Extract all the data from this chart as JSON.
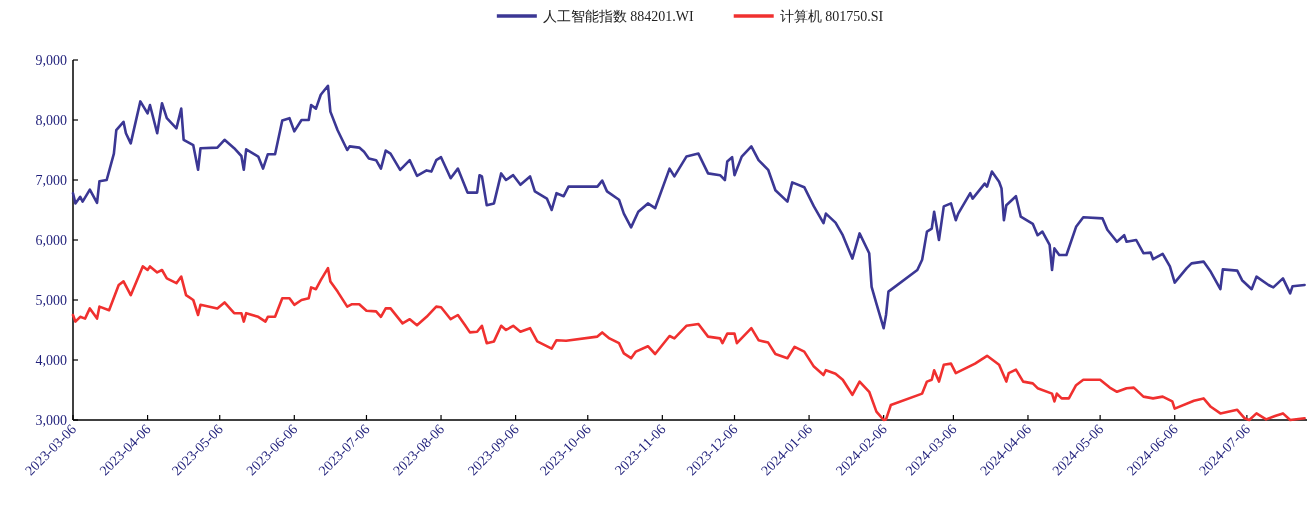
{
  "chart_data": {
    "type": "line",
    "legend": "top",
    "xlim": [
      "2023-03-06",
      "2024-07-31"
    ],
    "ylim": [
      3000,
      9000
    ],
    "yticks": [
      {
        "value": 3000,
        "label": "3,000"
      },
      {
        "value": 4000,
        "label": "4,000"
      },
      {
        "value": 5000,
        "label": "5,000"
      },
      {
        "value": 6000,
        "label": "6,000"
      },
      {
        "value": 7000,
        "label": "7,000"
      },
      {
        "value": 8000,
        "label": "8,000"
      },
      {
        "value": 9000,
        "label": "9,000"
      }
    ],
    "xticks": [
      {
        "value": "2023-03-06",
        "label": "2023-03-06"
      },
      {
        "value": "2023-04-06",
        "label": "2023-04-06"
      },
      {
        "value": "2023-05-06",
        "label": "2023-05-06"
      },
      {
        "value": "2023-06-06",
        "label": "2023-06-06"
      },
      {
        "value": "2023-07-06",
        "label": "2023-07-06"
      },
      {
        "value": "2023-08-06",
        "label": "2023-08-06"
      },
      {
        "value": "2023-09-06",
        "label": "2023-09-06"
      },
      {
        "value": "2023-10-06",
        "label": "2023-10-06"
      },
      {
        "value": "2023-11-06",
        "label": "2023-11-06"
      },
      {
        "value": "2023-12-06",
        "label": "2023-12-06"
      },
      {
        "value": "2024-01-06",
        "label": "2024-01-06"
      },
      {
        "value": "2024-02-06",
        "label": "2024-02-06"
      },
      {
        "value": "2024-03-06",
        "label": "2024-03-06"
      },
      {
        "value": "2024-04-06",
        "label": "2024-04-06"
      },
      {
        "value": "2024-05-06",
        "label": "2024-05-06"
      },
      {
        "value": "2024-06-06",
        "label": "2024-06-06"
      },
      {
        "value": "2024-07-06",
        "label": "2024-07-06"
      }
    ],
    "series": [
      {
        "name": "人工智能指数 884201.WI",
        "color": "#3b3794",
        "x": [
          "2023-03-06",
          "2023-03-07",
          "2023-03-09",
          "2023-03-10",
          "2023-03-13",
          "2023-03-16",
          "2023-03-17",
          "2023-03-20",
          "2023-03-23",
          "2023-03-24",
          "2023-03-27",
          "2023-03-28",
          "2023-03-30",
          "2023-04-03",
          "2023-04-06",
          "2023-04-07",
          "2023-04-10",
          "2023-04-12",
          "2023-04-14",
          "2023-04-18",
          "2023-04-20",
          "2023-04-21",
          "2023-04-25",
          "2023-04-27",
          "2023-04-28",
          "2023-05-05",
          "2023-05-08",
          "2023-05-12",
          "2023-05-15",
          "2023-05-16",
          "2023-05-17",
          "2023-05-22",
          "2023-05-24",
          "2023-05-26",
          "2023-05-29",
          "2023-06-01",
          "2023-06-04",
          "2023-06-06",
          "2023-06-09",
          "2023-06-12",
          "2023-06-13",
          "2023-06-15",
          "2023-06-17",
          "2023-06-20",
          "2023-06-21",
          "2023-06-24",
          "2023-06-28",
          "2023-06-29",
          "2023-07-03",
          "2023-07-05",
          "2023-07-07",
          "2023-07-10",
          "2023-07-12",
          "2023-07-14",
          "2023-07-16",
          "2023-07-20",
          "2023-07-24",
          "2023-07-27",
          "2023-07-31",
          "2023-08-02",
          "2023-08-04",
          "2023-08-06",
          "2023-08-10",
          "2023-08-13",
          "2023-08-16",
          "2023-08-17",
          "2023-08-21",
          "2023-08-22",
          "2023-08-23",
          "2023-08-25",
          "2023-08-28",
          "2023-08-31",
          "2023-09-02",
          "2023-09-05",
          "2023-09-08",
          "2023-09-12",
          "2023-09-14",
          "2023-09-19",
          "2023-09-21",
          "2023-09-23",
          "2023-09-26",
          "2023-09-28",
          "2023-10-10",
          "2023-10-12",
          "2023-10-14",
          "2023-10-19",
          "2023-10-21",
          "2023-10-24",
          "2023-10-27",
          "2023-10-31",
          "2023-11-03",
          "2023-11-09",
          "2023-11-11",
          "2023-11-16",
          "2023-11-21",
          "2023-11-25",
          "2023-11-30",
          "2023-12-02",
          "2023-12-03",
          "2023-12-05",
          "2023-12-06",
          "2023-12-09",
          "2023-12-13",
          "2023-12-16",
          "2023-12-20",
          "2023-12-23",
          "2023-12-28",
          "2023-12-30",
          "2024-01-04",
          "2024-01-08",
          "2024-01-12",
          "2024-01-13",
          "2024-01-17",
          "2024-01-20",
          "2024-01-24",
          "2024-01-27",
          "2024-01-31",
          "2024-02-01",
          "2024-02-03",
          "2024-02-06",
          "2024-02-07",
          "2024-02-08",
          "2024-02-20",
          "2024-02-22",
          "2024-02-24",
          "2024-02-26",
          "2024-02-27",
          "2024-02-29",
          "2024-03-02",
          "2024-03-05",
          "2024-03-07",
          "2024-03-08",
          "2024-03-13",
          "2024-03-14",
          "2024-03-19",
          "2024-03-20",
          "2024-03-22",
          "2024-03-25",
          "2024-03-26",
          "2024-03-27",
          "2024-03-28",
          "2024-04-01",
          "2024-04-03",
          "2024-04-08",
          "2024-04-10",
          "2024-04-12",
          "2024-04-15",
          "2024-04-16",
          "2024-04-17",
          "2024-04-19",
          "2024-04-22",
          "2024-04-26",
          "2024-04-29",
          "2024-05-07",
          "2024-05-09",
          "2024-05-13",
          "2024-05-16",
          "2024-05-17",
          "2024-05-21",
          "2024-05-24",
          "2024-05-27",
          "2024-05-28",
          "2024-06-01",
          "2024-06-04",
          "2024-06-06",
          "2024-06-11",
          "2024-06-13",
          "2024-06-18",
          "2024-06-21",
          "2024-06-25",
          "2024-06-26",
          "2024-07-02",
          "2024-07-04",
          "2024-07-08",
          "2024-07-10",
          "2024-07-15",
          "2024-07-17",
          "2024-07-21",
          "2024-07-24",
          "2024-07-25",
          "2024-07-30"
        ],
        "values": [
          6780,
          6610,
          6720,
          6640,
          6840,
          6620,
          6980,
          7000,
          7440,
          7830,
          7970,
          7780,
          7610,
          8310,
          8110,
          8250,
          7780,
          8280,
          8030,
          7860,
          8190,
          7670,
          7580,
          7170,
          7530,
          7540,
          7670,
          7530,
          7400,
          7170,
          7510,
          7390,
          7190,
          7430,
          7430,
          7990,
          8030,
          7810,
          8000,
          8000,
          8250,
          8190,
          8420,
          8570,
          8140,
          7830,
          7500,
          7560,
          7540,
          7470,
          7360,
          7330,
          7190,
          7490,
          7440,
          7170,
          7330,
          7070,
          7160,
          7140,
          7330,
          7380,
          7030,
          7190,
          6890,
          6790,
          6790,
          7080,
          7060,
          6580,
          6610,
          7110,
          7000,
          7080,
          6920,
          7060,
          6810,
          6690,
          6500,
          6780,
          6730,
          6890,
          6890,
          6990,
          6810,
          6670,
          6440,
          6210,
          6470,
          6610,
          6530,
          7190,
          7060,
          7390,
          7440,
          7110,
          7080,
          7000,
          7310,
          7380,
          7080,
          7390,
          7560,
          7330,
          7170,
          6830,
          6640,
          6960,
          6880,
          6560,
          6280,
          6440,
          6290,
          6080,
          5690,
          6110,
          5780,
          5220,
          4940,
          4530,
          4750,
          5140,
          5500,
          5670,
          6140,
          6190,
          6470,
          6000,
          6560,
          6610,
          6330,
          6440,
          6780,
          6690,
          6940,
          6890,
          7140,
          6970,
          6860,
          6330,
          6580,
          6730,
          6390,
          6270,
          6080,
          6140,
          5920,
          5500,
          5860,
          5750,
          5750,
          6220,
          6380,
          6360,
          6170,
          5970,
          6080,
          5970,
          6000,
          5780,
          5790,
          5680,
          5770,
          5560,
          5290,
          5530,
          5610,
          5640,
          5470,
          5180,
          5510,
          5490,
          5330,
          5180,
          5390,
          5250,
          5210,
          5360,
          5110,
          5230,
          5250
        ]
      },
      {
        "name": "计算机 801750.SI",
        "color": "#f0302f",
        "x": [
          "2023-03-06",
          "2023-03-07",
          "2023-03-09",
          "2023-03-11",
          "2023-03-13",
          "2023-03-16",
          "2023-03-17",
          "2023-03-21",
          "2023-03-25",
          "2023-03-27",
          "2023-03-30",
          "2023-04-04",
          "2023-04-06",
          "2023-04-07",
          "2023-04-10",
          "2023-04-12",
          "2023-04-14",
          "2023-04-18",
          "2023-04-20",
          "2023-04-22",
          "2023-04-25",
          "2023-04-27",
          "2023-04-28",
          "2023-05-05",
          "2023-05-08",
          "2023-05-12",
          "2023-05-15",
          "2023-05-16",
          "2023-05-17",
          "2023-05-22",
          "2023-05-25",
          "2023-05-26",
          "2023-05-29",
          "2023-06-01",
          "2023-06-04",
          "2023-06-06",
          "2023-06-09",
          "2023-06-12",
          "2023-06-13",
          "2023-06-15",
          "2023-06-17",
          "2023-06-20",
          "2023-06-21",
          "2023-06-24",
          "2023-06-28",
          "2023-06-30",
          "2023-07-03",
          "2023-07-06",
          "2023-07-10",
          "2023-07-12",
          "2023-07-14",
          "2023-07-16",
          "2023-07-21",
          "2023-07-24",
          "2023-07-27",
          "2023-07-31",
          "2023-08-04",
          "2023-08-06",
          "2023-08-10",
          "2023-08-13",
          "2023-08-16",
          "2023-08-18",
          "2023-08-21",
          "2023-08-23",
          "2023-08-25",
          "2023-08-28",
          "2023-08-31",
          "2023-09-02",
          "2023-09-05",
          "2023-09-08",
          "2023-09-12",
          "2023-09-15",
          "2023-09-21",
          "2023-09-23",
          "2023-09-27",
          "2023-10-10",
          "2023-10-12",
          "2023-10-15",
          "2023-10-19",
          "2023-10-21",
          "2023-10-24",
          "2023-10-26",
          "2023-10-31",
          "2023-11-03",
          "2023-11-09",
          "2023-11-11",
          "2023-11-16",
          "2023-11-21",
          "2023-11-25",
          "2023-11-30",
          "2023-12-01",
          "2023-12-03",
          "2023-12-06",
          "2023-12-07",
          "2023-12-13",
          "2023-12-16",
          "2023-12-20",
          "2023-12-23",
          "2023-12-28",
          "2023-12-31",
          "2024-01-04",
          "2024-01-08",
          "2024-01-12",
          "2024-01-13",
          "2024-01-17",
          "2024-01-20",
          "2024-01-24",
          "2024-01-27",
          "2024-01-31",
          "2024-02-03",
          "2024-02-06",
          "2024-02-07",
          "2024-02-09",
          "2024-02-22",
          "2024-02-24",
          "2024-02-26",
          "2024-02-27",
          "2024-02-29",
          "2024-03-02",
          "2024-03-05",
          "2024-03-07",
          "2024-03-15",
          "2024-03-20",
          "2024-03-25",
          "2024-03-28",
          "2024-03-29",
          "2024-04-01",
          "2024-04-04",
          "2024-04-08",
          "2024-04-10",
          "2024-04-16",
          "2024-04-17",
          "2024-04-18",
          "2024-04-20",
          "2024-04-23",
          "2024-04-26",
          "2024-04-29",
          "2024-05-06",
          "2024-05-10",
          "2024-05-13",
          "2024-05-17",
          "2024-05-20",
          "2024-05-24",
          "2024-05-28",
          "2024-06-01",
          "2024-06-05",
          "2024-06-06",
          "2024-06-14",
          "2024-06-18",
          "2024-06-21",
          "2024-06-25",
          "2024-07-02",
          "2024-07-05",
          "2024-07-07",
          "2024-07-10",
          "2024-07-14",
          "2024-07-18",
          "2024-07-21",
          "2024-07-24",
          "2024-07-30"
        ],
        "values": [
          4750,
          4640,
          4720,
          4690,
          4860,
          4690,
          4890,
          4830,
          5250,
          5310,
          5080,
          5560,
          5500,
          5560,
          5460,
          5500,
          5360,
          5280,
          5390,
          5080,
          5000,
          4750,
          4920,
          4860,
          4960,
          4780,
          4780,
          4640,
          4780,
          4720,
          4640,
          4720,
          4720,
          5030,
          5030,
          4920,
          5000,
          5030,
          5210,
          5180,
          5330,
          5530,
          5310,
          5140,
          4890,
          4930,
          4930,
          4820,
          4810,
          4720,
          4860,
          4860,
          4610,
          4680,
          4580,
          4720,
          4890,
          4880,
          4680,
          4750,
          4580,
          4460,
          4470,
          4570,
          4280,
          4310,
          4570,
          4500,
          4570,
          4470,
          4530,
          4310,
          4190,
          4330,
          4320,
          4390,
          4460,
          4360,
          4280,
          4110,
          4030,
          4140,
          4230,
          4100,
          4400,
          4360,
          4570,
          4600,
          4390,
          4360,
          4280,
          4440,
          4440,
          4280,
          4530,
          4330,
          4290,
          4100,
          4030,
          4220,
          4140,
          3890,
          3750,
          3830,
          3770,
          3670,
          3420,
          3640,
          3470,
          3140,
          3000,
          3010,
          3250,
          3440,
          3640,
          3670,
          3830,
          3640,
          3920,
          3940,
          3780,
          3940,
          4070,
          3920,
          3640,
          3780,
          3840,
          3640,
          3610,
          3530,
          3440,
          3310,
          3440,
          3360,
          3360,
          3580,
          3670,
          3670,
          3540,
          3470,
          3530,
          3540,
          3390,
          3360,
          3390,
          3310,
          3190,
          3320,
          3360,
          3220,
          3110,
          3170,
          3030,
          3000,
          3110,
          3010,
          3070,
          3110,
          3000,
          3030
        ]
      }
    ]
  }
}
